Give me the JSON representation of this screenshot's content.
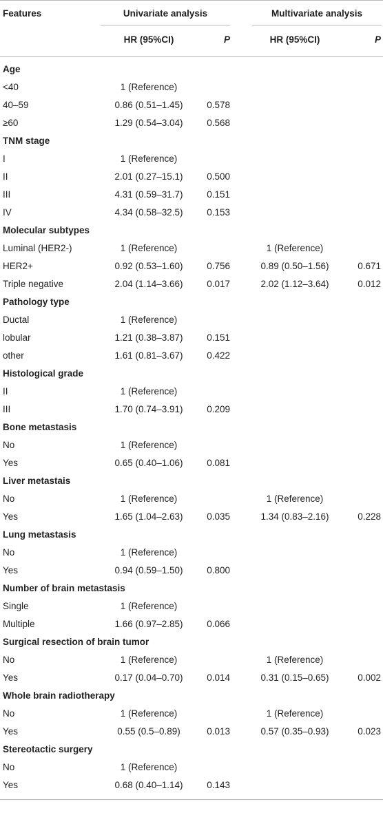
{
  "header": {
    "features": "Features",
    "univariate": "Univariate analysis",
    "multivariate": "Multivariate analysis",
    "hr_col": "HR (95%CI)",
    "p_col": "P"
  },
  "rows": [
    {
      "type": "section",
      "label": "Age"
    },
    {
      "type": "data",
      "label": "<40",
      "uhr": "1 (Reference)",
      "up": "",
      "mhr": "",
      "mp": ""
    },
    {
      "type": "data",
      "label": "40–59",
      "uhr": "0.86 (0.51–1.45)",
      "up": "0.578",
      "mhr": "",
      "mp": ""
    },
    {
      "type": "data",
      "label": "≥60",
      "uhr": "1.29 (0.54–3.04)",
      "up": "0.568",
      "mhr": "",
      "mp": ""
    },
    {
      "type": "section",
      "label": "TNM stage"
    },
    {
      "type": "data",
      "label": "I",
      "uhr": "1 (Reference)",
      "up": "",
      "mhr": "",
      "mp": ""
    },
    {
      "type": "data",
      "label": "II",
      "uhr": "2.01 (0.27–15.1)",
      "up": "0.500",
      "mhr": "",
      "mp": ""
    },
    {
      "type": "data",
      "label": "III",
      "uhr": "4.31 (0.59–31.7)",
      "up": "0.151",
      "mhr": "",
      "mp": ""
    },
    {
      "type": "data",
      "label": "IV",
      "uhr": "4.34 (0.58–32.5)",
      "up": "0.153",
      "mhr": "",
      "mp": ""
    },
    {
      "type": "section",
      "label": "Molecular subtypes"
    },
    {
      "type": "data",
      "label": "Luminal (HER2-)",
      "uhr": "1 (Reference)",
      "up": "",
      "mhr": "1 (Reference)",
      "mp": ""
    },
    {
      "type": "data",
      "label": "HER2+",
      "uhr": "0.92 (0.53–1.60)",
      "up": "0.756",
      "mhr": "0.89 (0.50–1.56)",
      "mp": "0.671"
    },
    {
      "type": "data",
      "label": "Triple negative",
      "uhr": "2.04 (1.14–3.66)",
      "up": "0.017",
      "mhr": "2.02 (1.12–3.64)",
      "mp": "0.012"
    },
    {
      "type": "section",
      "label": "Pathology type"
    },
    {
      "type": "data",
      "label": "Ductal",
      "uhr": "1 (Reference)",
      "up": "",
      "mhr": "",
      "mp": ""
    },
    {
      "type": "data",
      "label": "lobular",
      "uhr": "1.21 (0.38–3.87)",
      "up": "0.151",
      "mhr": "",
      "mp": ""
    },
    {
      "type": "data",
      "label": "other",
      "uhr": "1.61 (0.81–3.67)",
      "up": "0.422",
      "mhr": "",
      "mp": ""
    },
    {
      "type": "section",
      "label": "Histological grade"
    },
    {
      "type": "data",
      "label": "II",
      "uhr": "1 (Reference)",
      "up": "",
      "mhr": "",
      "mp": ""
    },
    {
      "type": "data",
      "label": "III",
      "uhr": "1.70 (0.74–3.91)",
      "up": "0.209",
      "mhr": "",
      "mp": ""
    },
    {
      "type": "section",
      "label": "Bone metastasis"
    },
    {
      "type": "data",
      "label": "No",
      "uhr": "1 (Reference)",
      "up": "",
      "mhr": "",
      "mp": ""
    },
    {
      "type": "data",
      "label": "Yes",
      "uhr": "0.65 (0.40–1.06)",
      "up": "0.081",
      "mhr": "",
      "mp": ""
    },
    {
      "type": "section",
      "label": "Liver metastais"
    },
    {
      "type": "data",
      "label": "No",
      "uhr": "1 (Reference)",
      "up": "",
      "mhr": "1 (Reference)",
      "mp": ""
    },
    {
      "type": "data",
      "label": "Yes",
      "uhr": "1.65 (1.04–2.63)",
      "up": "0.035",
      "mhr": "1.34 (0.83–2.16)",
      "mp": "0.228"
    },
    {
      "type": "section",
      "label": "Lung metastasis"
    },
    {
      "type": "data",
      "label": "No",
      "uhr": "1 (Reference)",
      "up": "",
      "mhr": "",
      "mp": ""
    },
    {
      "type": "data",
      "label": "Yes",
      "uhr": "0.94 (0.59–1.50)",
      "up": "0.800",
      "mhr": "",
      "mp": ""
    },
    {
      "type": "section",
      "label": "Number of brain metastasis"
    },
    {
      "type": "data",
      "label": "Single",
      "uhr": "1 (Reference)",
      "up": "",
      "mhr": "",
      "mp": ""
    },
    {
      "type": "data",
      "label": "Multiple",
      "uhr": "1.66 (0.97–2.85)",
      "up": "0.066",
      "mhr": "",
      "mp": ""
    },
    {
      "type": "section",
      "label": "Surgical resection of brain tumor"
    },
    {
      "type": "data",
      "label": "No",
      "uhr": "1 (Reference)",
      "up": "",
      "mhr": "1 (Reference)",
      "mp": ""
    },
    {
      "type": "data",
      "label": "Yes",
      "uhr": "0.17 (0.04–0.70)",
      "up": "0.014",
      "mhr": "0.31 (0.15–0.65)",
      "mp": "0.002"
    },
    {
      "type": "section",
      "label": "Whole brain radiotherapy"
    },
    {
      "type": "data",
      "label": "No",
      "uhr": "1 (Reference)",
      "up": "",
      "mhr": "1 (Reference)",
      "mp": ""
    },
    {
      "type": "data",
      "label": "Yes",
      "uhr": "0.55 (0.5–0.89)",
      "up": "0.013",
      "mhr": "0.57 (0.35–0.93)",
      "mp": "0.023"
    },
    {
      "type": "section",
      "label": "Stereotactic surgery"
    },
    {
      "type": "data",
      "label": "No",
      "uhr": "1 (Reference)",
      "up": "",
      "mhr": "",
      "mp": ""
    },
    {
      "type": "data",
      "label": "Yes",
      "uhr": "0.68 (0.40–1.14)",
      "up": "0.143",
      "mhr": "",
      "mp": ""
    }
  ]
}
